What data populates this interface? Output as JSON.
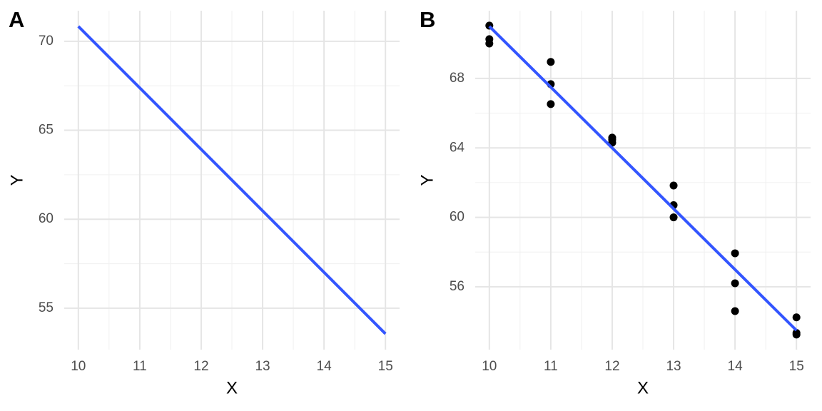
{
  "chart_data": [
    {
      "type": "line",
      "title": "A",
      "xlabel": "X",
      "ylabel": "Y",
      "x": [
        10,
        15
      ],
      "y": [
        70.84,
        53.56
      ],
      "color": "#3355ff",
      "xlim": [
        9.77,
        15.23
      ],
      "ylim": [
        52.67,
        71.72
      ],
      "xticks": [
        10,
        11,
        12,
        13,
        14,
        15
      ],
      "yticks": [
        55,
        60,
        65,
        70
      ],
      "grid": true
    },
    {
      "type": "scatter",
      "title": "B",
      "xlabel": "X",
      "ylabel": "Y",
      "x": [
        10,
        10,
        10,
        11,
        11,
        11,
        12,
        12,
        12,
        13,
        13,
        13,
        14,
        14,
        14,
        15,
        15,
        15
      ],
      "y": [
        71.04,
        70.26,
        70.01,
        68.95,
        67.67,
        66.52,
        64.59,
        64.47,
        64.3,
        61.83,
        60.7,
        60.0,
        57.93,
        56.2,
        54.6,
        54.24,
        53.34,
        53.25
      ],
      "color": "#000000",
      "fit": {
        "x": [
          10,
          15
        ],
        "y": [
          71.0,
          53.49
        ],
        "color": "#3355ff"
      },
      "xlim": [
        9.77,
        15.23
      ],
      "ylim": [
        52.38,
        71.9
      ],
      "xticks": [
        10,
        11,
        12,
        13,
        14,
        15
      ],
      "yticks": [
        56,
        60,
        64,
        68
      ],
      "grid": true
    }
  ]
}
